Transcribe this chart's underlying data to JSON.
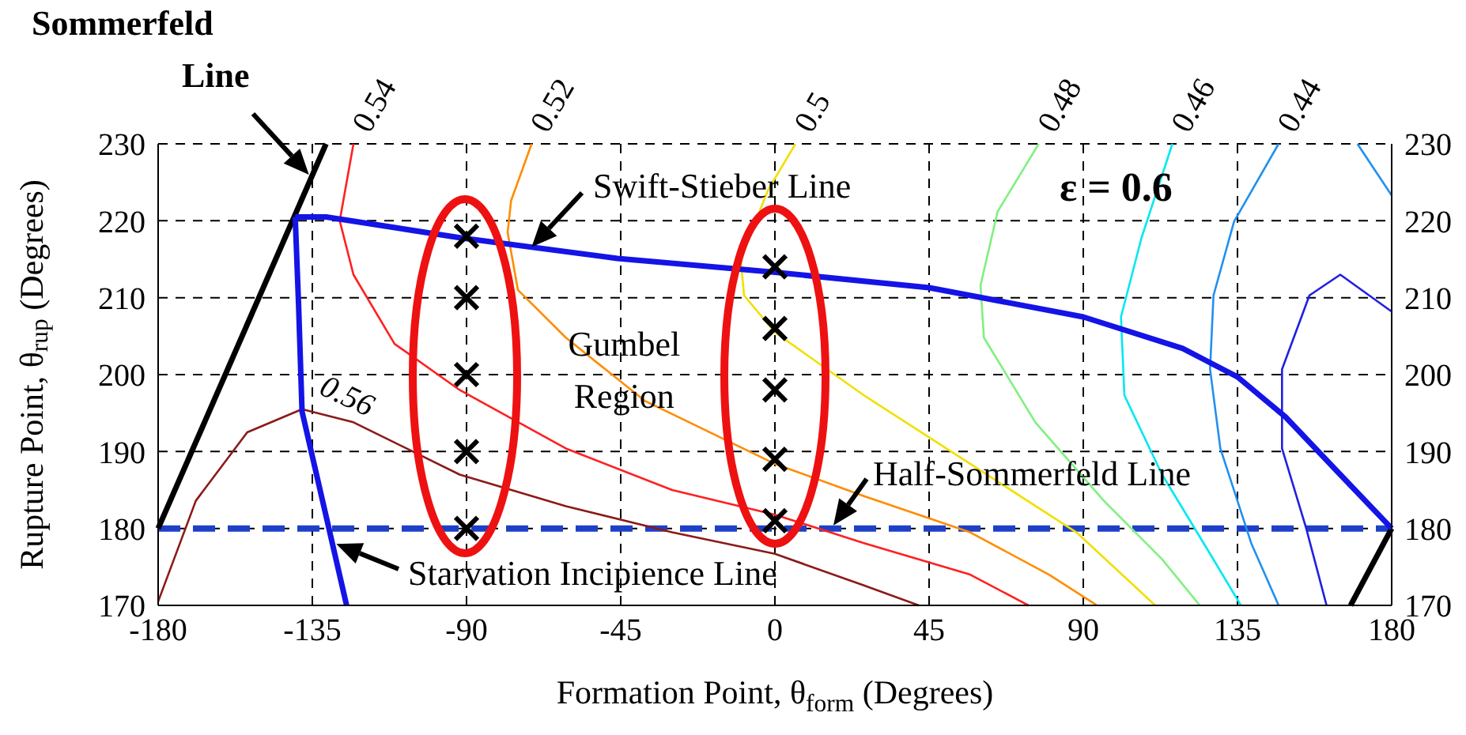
{
  "chart_data": {
    "type": "line",
    "xlabel": "Formation Point, θ$_{form}$ (Degrees)",
    "ylabel": "Rupture Point, θ$_{rup}$ (Degrees)",
    "xlim": [
      -180,
      180
    ],
    "xticks": [
      -180,
      -135,
      -90,
      -45,
      0,
      45,
      90,
      135,
      180
    ],
    "ylim": [
      170,
      230
    ],
    "yticks": [
      170,
      180,
      190,
      200,
      210,
      220,
      230
    ],
    "y2lim": [
      170,
      230
    ],
    "y2ticks": [
      170,
      180,
      190,
      200,
      210,
      220,
      230
    ],
    "grid": true,
    "series": [
      {
        "name": "0.56",
        "color": "#8b1a1a",
        "x": [
          -180,
          -169,
          -154,
          -138,
          -123,
          -92,
          -61,
          -30,
          0,
          26,
          42
        ],
        "values": [
          170.5,
          183.6,
          192.5,
          195.5,
          193.8,
          187,
          182.9,
          179.5,
          176.7,
          172.6,
          170
        ]
      },
      {
        "name": "0.54",
        "color": "#ff2020",
        "x": [
          -123,
          -127,
          -123,
          -111,
          -92,
          -61,
          -30,
          0,
          26,
          57,
          74
        ],
        "values": [
          230,
          220,
          213,
          204,
          198,
          190.4,
          185,
          181.8,
          178.1,
          174,
          170
        ]
      },
      {
        "name": "0.52",
        "color": "#ff8c00",
        "x": [
          -71,
          -77,
          -78,
          -75,
          -61,
          -38,
          0,
          26,
          57,
          80,
          94
        ],
        "values": [
          230,
          222.6,
          218.5,
          211,
          204.8,
          196.6,
          188.4,
          184.2,
          179.5,
          174,
          170
        ]
      },
      {
        "name": "0.5",
        "color": "#f0e000",
        "x": [
          6,
          -2,
          -10,
          -9,
          0,
          26,
          57,
          88,
          111
        ],
        "values": [
          230,
          224,
          215,
          210.3,
          205.5,
          197.3,
          188.4,
          179.5,
          170
        ]
      },
      {
        "name": "0.48",
        "color": "#80f080",
        "x": [
          77,
          65,
          60,
          61,
          76,
          96,
          113,
          124
        ],
        "values": [
          230,
          221.2,
          211.6,
          204.8,
          193.8,
          183.6,
          176,
          170
        ]
      },
      {
        "name": "0.46",
        "color": "#00e8f0",
        "x": [
          116,
          107,
          101,
          102,
          113,
          127,
          136
        ],
        "values": [
          230,
          217.8,
          207.5,
          197.3,
          187,
          176.7,
          170
        ]
      },
      {
        "name": "0.44",
        "color": "#2090f0",
        "x": [
          147,
          134,
          128,
          127,
          130,
          139,
          147
        ],
        "values": [
          230,
          219.9,
          210.3,
          200.7,
          190.4,
          178.1,
          170
        ]
      },
      {
        "color": "#2090f0",
        "x": [
          170,
          180
        ],
        "values": [
          230,
          223.3
        ]
      },
      {
        "color": "#2020e0",
        "x": [
          180,
          165,
          156,
          148,
          148,
          155,
          161
        ],
        "values": [
          208.2,
          213,
          210.3,
          200.7,
          190.4,
          180.1,
          170
        ]
      },
      {
        "color": "#000000",
        "x": [
          -180,
          -131
        ],
        "values": [
          180,
          230
        ]
      },
      {
        "color": "#000000",
        "x": [
          168,
          180
        ],
        "values": [
          170,
          180
        ]
      },
      {
        "color": "#1414e6",
        "x": [
          -140,
          -131,
          -92,
          -46,
          0,
          45,
          90,
          119,
          135,
          149,
          165,
          180
        ],
        "values": [
          220.5,
          220.5,
          217.8,
          215.1,
          213.3,
          211.3,
          207.5,
          203.4,
          199.7,
          194.5,
          187,
          180
        ]
      },
      {
        "color": "#1414e6",
        "x": [
          -140,
          -139,
          -138,
          -125
        ],
        "values": [
          220.5,
          208.9,
          195.2,
          170
        ]
      },
      {
        "type": "scatter",
        "marker": "cross",
        "color": "#000000",
        "x": [
          -90,
          -90,
          -90,
          -90,
          -90
        ],
        "values": [
          218,
          210,
          200,
          190,
          180
        ]
      },
      {
        "type": "scatter",
        "marker": "cross",
        "color": "#000000",
        "x": [
          0,
          0,
          0,
          0,
          0
        ],
        "values": [
          214,
          206,
          198,
          189,
          181
        ]
      }
    ],
    "ref_lines": [
      {
        "axis": "y",
        "value": 180,
        "label": "Half-Sommerfeld Line",
        "color": "#1e40c8",
        "line_style": "dashed"
      }
    ],
    "annotations": [
      {
        "text": "Sommerfeld Line",
        "x": -136,
        "y": 226
      },
      {
        "text": "Swift-Stieber Line",
        "x": -71,
        "y": 216.6
      },
      {
        "text": "Starvation Incipience Line",
        "x": -128,
        "y": 178
      },
      {
        "text": "Gumbel Region",
        "x": -44,
        "y": 200
      },
      "ε = 0.6"
    ]
  }
}
